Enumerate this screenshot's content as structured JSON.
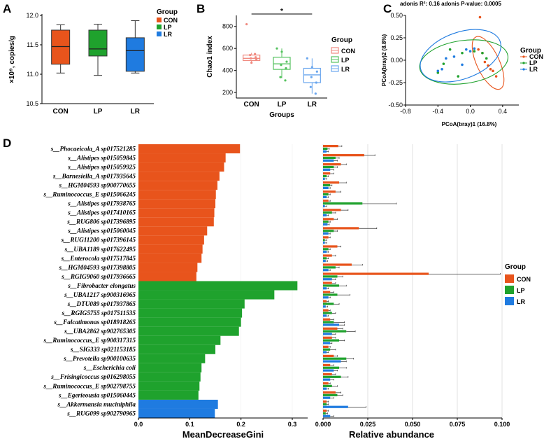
{
  "colors": {
    "CON": "#e8541c",
    "LP": "#1fa22d",
    "LR": "#1f7be0",
    "CON_light": "#f08a80",
    "LP_light": "#55c25f",
    "LR_light": "#6aa6ee",
    "grid": "#cccccc"
  },
  "panels": {
    "A": "A",
    "B": "B",
    "C": "C",
    "D": "D"
  },
  "chart_data": [
    {
      "id": "A",
      "type": "box",
      "ylabel": "×10⁹, copies/g",
      "ylim": [
        10.5,
        12.0
      ],
      "yticks": [
        "10.5",
        "11.0",
        "11.5",
        "12.0"
      ],
      "categories": [
        "CON",
        "LP",
        "LR"
      ],
      "boxes": [
        {
          "group": "CON",
          "min": 11.02,
          "q1": 11.17,
          "median": 11.47,
          "q3": 11.75,
          "max": 11.84
        },
        {
          "group": "LP",
          "min": 10.98,
          "q1": 11.31,
          "median": 11.43,
          "q3": 11.75,
          "max": 11.85
        },
        {
          "group": "LR",
          "min": 11.02,
          "q1": 11.05,
          "median": 11.4,
          "q3": 11.62,
          "max": 11.91
        }
      ],
      "legend": {
        "title": "Group",
        "items": [
          "CON",
          "LP",
          "LR"
        ]
      }
    },
    {
      "id": "B",
      "type": "box",
      "ylabel": "Chao1 index",
      "xlabel": "Groups",
      "ylim": [
        150,
        900
      ],
      "yticks": [
        "200",
        "400",
        "600",
        "800"
      ],
      "categories": [
        "CON",
        "LP",
        "LR"
      ],
      "significance": "*",
      "boxes": [
        {
          "group": "CON",
          "min": 470,
          "q1": 490,
          "median": 510,
          "q3": 540,
          "max": 560,
          "points": [
            820,
            470,
            500,
            510,
            520,
            540,
            550
          ]
        },
        {
          "group": "LP",
          "min": 330,
          "q1": 410,
          "median": 460,
          "q3": 520,
          "max": 600,
          "points": [
            600,
            570,
            480,
            450,
            420,
            340,
            310
          ]
        },
        {
          "group": "LR",
          "min": 190,
          "q1": 290,
          "median": 360,
          "q3": 420,
          "max": 510,
          "points": [
            510,
            430,
            390,
            340,
            290,
            250,
            190
          ]
        }
      ],
      "legend": {
        "title": "Group",
        "items": [
          "CON",
          "LP",
          "LR"
        ]
      }
    },
    {
      "id": "C",
      "type": "scatter",
      "title": "adonis R²: 0.16    adonis P-value: 0.0005",
      "xlabel": "PCoA(bray)1 (16.8%)",
      "ylabel": "PCoA(bray)2 (8.8%)",
      "xlim": [
        -0.8,
        0.6
      ],
      "ylim": [
        -0.5,
        0.5
      ],
      "xticks": [
        "-0.8",
        "-0.4",
        "0.0",
        "0.4"
      ],
      "yticks": [
        "-0.50",
        "-0.25",
        "0.00",
        "0.25",
        "0.50"
      ],
      "series": [
        {
          "name": "CON",
          "points": [
            [
              0.12,
              0.48
            ],
            [
              0.15,
              0.08
            ],
            [
              0.18,
              -0.02
            ],
            [
              0.22,
              -0.06
            ],
            [
              0.25,
              -0.1
            ],
            [
              0.28,
              -0.12
            ],
            [
              0.32,
              -0.18
            ],
            [
              0.1,
              0.12
            ]
          ]
        },
        {
          "name": "LP",
          "points": [
            [
              -0.4,
              -0.14
            ],
            [
              -0.33,
              -0.04
            ],
            [
              -0.25,
              0.12
            ],
            [
              -0.1,
              0.08
            ],
            [
              -0.15,
              -0.18
            ],
            [
              0.05,
              0.1
            ],
            [
              0.15,
              0.08
            ],
            [
              0.2,
              0.02
            ]
          ]
        },
        {
          "name": "LR",
          "points": [
            [
              -0.35,
              -0.1
            ],
            [
              -0.3,
              0.02
            ],
            [
              -0.2,
              0.04
            ],
            [
              -0.05,
              0.12
            ],
            [
              0.0,
              0.1
            ],
            [
              -0.1,
              -0.05
            ],
            [
              -0.4,
              -0.12
            ],
            [
              0.05,
              0.13
            ]
          ]
        }
      ],
      "ellipses": [
        {
          "group": "CON",
          "cx": 0.22,
          "cy": -0.03,
          "rx": 0.14,
          "ry": 0.32,
          "angle": -25
        },
        {
          "group": "LP",
          "cx": -0.08,
          "cy": -0.02,
          "rx": 0.55,
          "ry": 0.24,
          "angle": -8
        },
        {
          "group": "LR",
          "cx": -0.12,
          "cy": 0.05,
          "rx": 0.52,
          "ry": 0.26,
          "angle": -20
        }
      ],
      "legend": {
        "title": "Group",
        "items": [
          "CON",
          "LP",
          "LR"
        ]
      }
    },
    {
      "id": "D",
      "type": "bar",
      "xlabel_left": "MeanDecreaseGini",
      "xlabel_right": "Relative abundance",
      "xlim_left": [
        0,
        0.33
      ],
      "xticks_left": [
        "0.0",
        "0.1",
        "0.2",
        "0.3"
      ],
      "xlim_right": [
        0,
        0.1
      ],
      "xticks_right": [
        "0.000",
        "0.025",
        "0.050",
        "0.075",
        "0.100"
      ],
      "species": [
        {
          "name": "s__Phocaeicola_A sp017521285",
          "group": "CON",
          "gini": 0.198,
          "ab": [
            0.0085,
            0.0025,
            0.002
          ],
          "err": [
            0.002,
            0.001,
            0.001
          ]
        },
        {
          "name": "s__Alistipes sp015059845",
          "group": "CON",
          "gini": 0.17,
          "ab": [
            0.023,
            0.007,
            0.006
          ],
          "err": [
            0.006,
            0.002,
            0.002
          ]
        },
        {
          "name": "s__Alistipes sp015059925",
          "group": "CON",
          "gini": 0.167,
          "ab": [
            0.01,
            0.006,
            0.004
          ],
          "err": [
            0.003,
            0.002,
            0.002
          ]
        },
        {
          "name": "s__Barnesiella_A sp017935645",
          "group": "CON",
          "gini": 0.158,
          "ab": [
            0.004,
            0.002,
            0.001
          ],
          "err": [
            0.002,
            0.001,
            0.001
          ]
        },
        {
          "name": "s__HGM04593 sp900770655",
          "group": "CON",
          "gini": 0.154,
          "ab": [
            0.009,
            0.004,
            0.003
          ],
          "err": [
            0.004,
            0.001,
            0.001
          ]
        },
        {
          "name": "s__Ruminococcus_E sp015066245",
          "group": "CON",
          "gini": 0.151,
          "ab": [
            0.007,
            0.003,
            0.002
          ],
          "err": [
            0.003,
            0.001,
            0.001
          ]
        },
        {
          "name": "s__Alistipes sp017938765",
          "group": "CON",
          "gini": 0.15,
          "ab": [
            0.003,
            0.022,
            0.001
          ],
          "err": [
            0.001,
            0.019,
            0.001
          ]
        },
        {
          "name": "s__Alistipes sp017410165",
          "group": "CON",
          "gini": 0.148,
          "ab": [
            0.01,
            0.005,
            0.002
          ],
          "err": [
            0.004,
            0.002,
            0.001
          ]
        },
        {
          "name": "s__RUG806 sp017396895",
          "group": "CON",
          "gini": 0.147,
          "ab": [
            0.006,
            0.003,
            0.0025
          ],
          "err": [
            0.002,
            0.001,
            0.001
          ]
        },
        {
          "name": "s__Alistipes sp015060045",
          "group": "CON",
          "gini": 0.134,
          "ab": [
            0.02,
            0.006,
            0.003
          ],
          "err": [
            0.01,
            0.002,
            0.001
          ]
        },
        {
          "name": "s__RUG11200 sp017396145",
          "group": "CON",
          "gini": 0.128,
          "ab": [
            0.003,
            0.001,
            0.001
          ],
          "err": [
            0.001,
            0.001,
            0.001
          ]
        },
        {
          "name": "s__UBA1189 sp017622495",
          "group": "CON",
          "gini": 0.125,
          "ab": [
            0.008,
            0.003,
            0.002
          ],
          "err": [
            0.002,
            0.001,
            0.001
          ]
        },
        {
          "name": "s__Enterocola sp017517845",
          "group": "CON",
          "gini": 0.123,
          "ab": [
            0.005,
            0.002,
            0.0015
          ],
          "err": [
            0.002,
            0.001,
            0.001
          ]
        },
        {
          "name": "s__HGM04593 sp017398805",
          "group": "CON",
          "gini": 0.115,
          "ab": [
            0.016,
            0.007,
            0.003
          ],
          "err": [
            0.006,
            0.002,
            0.001
          ]
        },
        {
          "name": "s__RGIG9060 sp017936665",
          "group": "CON",
          "gini": 0.113,
          "ab": [
            0.059,
            0.008,
            0.005
          ],
          "err": [
            0.04,
            0.003,
            0.002
          ]
        },
        {
          "name": "s__Fibrobacter elongatus",
          "group": "LP",
          "gini": 0.31,
          "ab": [
            0.005,
            0.009,
            0.002
          ],
          "err": [
            0.002,
            0.004,
            0.001
          ]
        },
        {
          "name": "s__UBA1217 sp900316965",
          "group": "LP",
          "gini": 0.265,
          "ab": [
            0.004,
            0.008,
            0.003
          ],
          "err": [
            0.002,
            0.007,
            0.001
          ]
        },
        {
          "name": "s__DTU089 sp017937865",
          "group": "LP",
          "gini": 0.207,
          "ab": [
            0.002,
            0.006,
            0.0015
          ],
          "err": [
            0.001,
            0.003,
            0.001
          ]
        },
        {
          "name": "s__RGIG5755 sp017511535",
          "group": "LP",
          "gini": 0.202,
          "ab": [
            0.003,
            0.005,
            0.002
          ],
          "err": [
            0.001,
            0.002,
            0.001
          ]
        },
        {
          "name": "s__Falcatimonas sp018918265",
          "group": "LP",
          "gini": 0.2,
          "ab": [
            0.004,
            0.006,
            0.009
          ],
          "err": [
            0.002,
            0.006,
            0.003
          ]
        },
        {
          "name": "s__UBA2862 sp902765305",
          "group": "LP",
          "gini": 0.196,
          "ab": [
            0.008,
            0.013,
            0.005
          ],
          "err": [
            0.003,
            0.005,
            0.002
          ]
        },
        {
          "name": "s__Ruminococcus_E sp900317315",
          "group": "LP",
          "gini": 0.16,
          "ab": [
            0.005,
            0.009,
            0.004
          ],
          "err": [
            0.002,
            0.003,
            0.001
          ]
        },
        {
          "name": "s__SIG333 sp021153185",
          "group": "LP",
          "gini": 0.15,
          "ab": [
            0.003,
            0.004,
            0.002
          ],
          "err": [
            0.001,
            0.003,
            0.001
          ]
        },
        {
          "name": "s__Prevotella sp900100635",
          "group": "LP",
          "gini": 0.13,
          "ab": [
            0.006,
            0.013,
            0.01
          ],
          "err": [
            0.002,
            0.004,
            0.003
          ]
        },
        {
          "name": "s__Escherichia coli",
          "group": "LP",
          "gini": 0.123,
          "ab": [
            0.004,
            0.009,
            0.006
          ],
          "err": [
            0.002,
            0.004,
            0.002
          ]
        },
        {
          "name": "s__Frisingicoccus sp016298055",
          "group": "LP",
          "gini": 0.121,
          "ab": [
            0.005,
            0.01,
            0.004
          ],
          "err": [
            0.002,
            0.004,
            0.002
          ]
        },
        {
          "name": "s__Ruminococcus_E sp902798755",
          "group": "LP",
          "gini": 0.119,
          "ab": [
            0.003,
            0.005,
            0.002
          ],
          "err": [
            0.001,
            0.003,
            0.001
          ]
        },
        {
          "name": "s__Egerieousia sp015060445",
          "group": "LP",
          "gini": 0.117,
          "ab": [
            0.007,
            0.008,
            0.004
          ],
          "err": [
            0.003,
            0.003,
            0.002
          ]
        },
        {
          "name": "s__Akkermansia muciniphila",
          "group": "LR",
          "gini": 0.155,
          "ab": [
            0.002,
            0.002,
            0.014
          ],
          "err": [
            0.001,
            0.001,
            0.01
          ]
        },
        {
          "name": "s__RUG099 sp902790965",
          "group": "LR",
          "gini": 0.149,
          "ab": [
            0.002,
            0.0015,
            0.004
          ],
          "err": [
            0.001,
            0.001,
            0.002
          ]
        }
      ],
      "legend": {
        "title": "Group",
        "items": [
          "CON",
          "LP",
          "LR"
        ]
      }
    }
  ]
}
